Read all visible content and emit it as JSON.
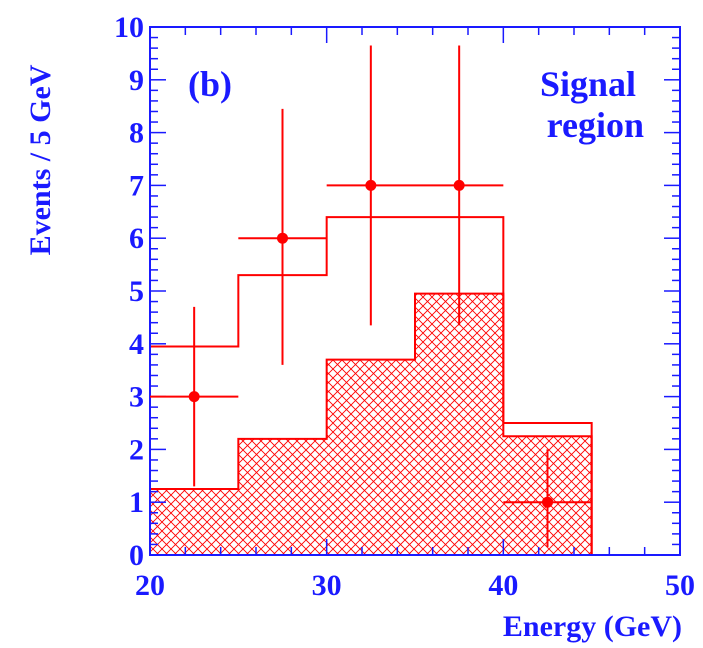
{
  "chart_data": {
    "type": "histogram",
    "panel_label": "(b)",
    "annotation": [
      "Signal",
      "region"
    ],
    "xlabel": "Energy (GeV)",
    "ylabel": "Events / 5 GeV",
    "xlim": [
      20,
      50
    ],
    "ylim": [
      0,
      10
    ],
    "x_ticks": [
      20,
      30,
      40,
      50
    ],
    "y_ticks": [
      0,
      1,
      2,
      3,
      4,
      5,
      6,
      7,
      8,
      9,
      10
    ],
    "bin_edges": [
      20,
      25,
      30,
      35,
      40,
      45,
      50
    ],
    "series": [
      {
        "kind": "total-prediction-histogram",
        "values": [
          3.95,
          5.3,
          6.4,
          6.4,
          2.5,
          0.0
        ]
      },
      {
        "kind": "background-hatched-histogram",
        "values": [
          1.25,
          2.2,
          3.7,
          4.95,
          2.25,
          0.0
        ]
      },
      {
        "kind": "data-points",
        "x": [
          22.5,
          27.5,
          32.5,
          37.5,
          42.5
        ],
        "y": [
          3,
          6,
          7,
          7,
          1
        ],
        "y_err_low": [
          1.7,
          2.4,
          2.65,
          2.65,
          0.85
        ],
        "y_err_high": [
          1.7,
          2.45,
          2.65,
          2.65,
          1.0
        ],
        "x_halfwidth": 2.5
      }
    ],
    "colors": {
      "axis": "#1a1aff",
      "data": "#ff0000",
      "hatch": "#ff0000"
    }
  }
}
